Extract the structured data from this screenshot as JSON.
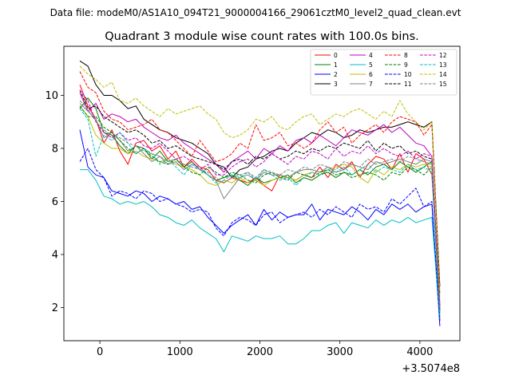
{
  "suptitle": "Data file: modeM0/AS1A10_094T21_9000004166_29061cztM0_level2_quad_clean.evt",
  "chart_data": {
    "type": "line",
    "title": "Quadrant 3 module wise count rates with 100.0s bins.",
    "xlabel": "",
    "ylabel": "",
    "offset_text": "+3.5074e8",
    "xlim": [
      -450,
      4500
    ],
    "ylim": [
      0.75,
      11.85
    ],
    "xticks": [
      0,
      1000,
      2000,
      3000,
      4000
    ],
    "xtick_labels": [
      "0",
      "1000",
      "2000",
      "3000",
      "4000"
    ],
    "yticks": [
      2,
      4,
      6,
      8,
      10
    ],
    "ytick_labels": [
      "2",
      "4",
      "6",
      "8",
      "10"
    ],
    "legend_position": "upper right",
    "x": [
      -250,
      -150,
      -50,
      50,
      150,
      250,
      350,
      450,
      550,
      650,
      750,
      850,
      950,
      1050,
      1150,
      1250,
      1350,
      1450,
      1550,
      1650,
      1750,
      1850,
      1950,
      2050,
      2150,
      2250,
      2350,
      2450,
      2550,
      2650,
      2750,
      2850,
      2950,
      3050,
      3150,
      3250,
      3350,
      3450,
      3550,
      3650,
      3750,
      3850,
      3950,
      4050,
      4150,
      4250
    ],
    "series": [
      {
        "name": "0",
        "color": "#ff0000",
        "dash": "solid",
        "values": [
          10.4,
          9.6,
          9.1,
          8.2,
          8.7,
          7.9,
          7.4,
          8.2,
          8.3,
          7.9,
          8.1,
          7.6,
          7.9,
          7.3,
          7.6,
          7.3,
          7.2,
          6.8,
          6.7,
          6.9,
          6.8,
          6.7,
          6.9,
          6.6,
          6.4,
          7.0,
          6.9,
          6.8,
          7.0,
          6.9,
          7.3,
          6.9,
          7.4,
          7.2,
          7.5,
          6.9,
          7.4,
          7.7,
          7.6,
          7.2,
          7.8,
          7.1,
          7.8,
          7.6,
          7.0,
          2.1
        ]
      },
      {
        "name": "1",
        "color": "#008000",
        "dash": "solid",
        "values": [
          9.5,
          9.9,
          9.5,
          8.6,
          8.5,
          8.1,
          7.8,
          8.1,
          8.0,
          7.6,
          7.9,
          7.5,
          7.6,
          7.3,
          7.5,
          7.2,
          7.0,
          6.8,
          6.9,
          7.0,
          6.8,
          6.6,
          6.9,
          6.7,
          6.8,
          6.9,
          7.0,
          6.7,
          6.9,
          6.8,
          7.0,
          7.1,
          6.9,
          7.1,
          7.0,
          7.2,
          7.0,
          7.3,
          7.4,
          7.2,
          7.5,
          7.3,
          7.1,
          7.3,
          7.5,
          1.8
        ]
      },
      {
        "name": "2",
        "color": "#0000ff",
        "dash": "solid",
        "values": [
          8.7,
          7.3,
          7.0,
          6.9,
          6.4,
          6.3,
          6.2,
          6.4,
          6.3,
          6.0,
          6.2,
          6.1,
          5.9,
          6.0,
          5.7,
          5.8,
          5.4,
          5.1,
          4.8,
          5.1,
          5.3,
          5.5,
          5.1,
          5.7,
          5.3,
          5.6,
          5.4,
          5.5,
          5.5,
          5.9,
          5.3,
          5.7,
          5.6,
          5.5,
          5.8,
          5.6,
          5.3,
          5.7,
          5.5,
          5.9,
          5.7,
          5.9,
          5.6,
          5.8,
          5.9,
          1.3
        ]
      },
      {
        "name": "3",
        "color": "#000000",
        "dash": "solid",
        "values": [
          11.3,
          11.1,
          10.4,
          10.0,
          10.0,
          9.8,
          9.5,
          9.6,
          9.1,
          8.9,
          8.7,
          8.6,
          8.4,
          8.3,
          8.2,
          8.0,
          7.8,
          7.4,
          7.3,
          6.9,
          7.2,
          7.3,
          7.6,
          7.7,
          7.9,
          8.0,
          7.9,
          8.2,
          8.4,
          8.6,
          8.5,
          8.7,
          8.6,
          8.4,
          8.5,
          8.7,
          8.6,
          8.7,
          8.8,
          8.8,
          8.9,
          9.0,
          8.9,
          8.8,
          9.0,
          2.8
        ]
      },
      {
        "name": "4",
        "color": "#bf00bf",
        "dash": "solid",
        "values": [
          10.1,
          9.4,
          9.7,
          9.1,
          9.3,
          9.2,
          9.0,
          9.1,
          8.8,
          8.6,
          8.4,
          8.3,
          8.5,
          8.2,
          8.0,
          7.8,
          7.6,
          7.4,
          7.1,
          7.5,
          7.7,
          7.9,
          7.6,
          8.0,
          7.8,
          8.1,
          7.9,
          8.3,
          8.4,
          8.2,
          8.5,
          8.3,
          8.1,
          8.4,
          8.7,
          8.6,
          8.5,
          8.7,
          8.9,
          8.6,
          8.8,
          8.5,
          8.2,
          8.1,
          7.7,
          2.0
        ]
      },
      {
        "name": "5",
        "color": "#00bfbf",
        "dash": "solid",
        "values": [
          7.2,
          7.2,
          6.8,
          6.2,
          6.1,
          5.9,
          6.0,
          5.9,
          6.0,
          5.8,
          5.5,
          5.4,
          5.2,
          5.1,
          5.3,
          5.0,
          4.8,
          4.6,
          4.1,
          4.7,
          4.6,
          4.5,
          4.7,
          4.6,
          4.6,
          4.7,
          4.4,
          4.4,
          4.6,
          4.9,
          4.9,
          5.1,
          5.2,
          4.8,
          5.2,
          5.1,
          5.0,
          5.3,
          5.1,
          5.3,
          5.2,
          5.4,
          5.2,
          5.3,
          5.4,
          1.5
        ]
      },
      {
        "name": "6",
        "color": "#bfbf00",
        "dash": "solid",
        "values": [
          9.6,
          9.2,
          8.5,
          8.2,
          8.0,
          8.0,
          7.8,
          7.9,
          7.7,
          7.6,
          7.5,
          7.6,
          7.4,
          7.3,
          7.2,
          7.0,
          6.7,
          6.6,
          6.8,
          6.7,
          6.9,
          6.7,
          6.8,
          6.6,
          6.8,
          6.9,
          6.9,
          6.8,
          7.0,
          7.1,
          7.0,
          7.2,
          7.3,
          7.4,
          7.3,
          6.9,
          6.7,
          7.2,
          7.0,
          7.3,
          7.2,
          7.4,
          7.3,
          7.4,
          7.3,
          2.4
        ]
      },
      {
        "name": "7",
        "color": "#808080",
        "dash": "solid",
        "values": [
          9.7,
          9.4,
          9.1,
          8.4,
          8.6,
          8.3,
          7.9,
          8.1,
          7.8,
          7.5,
          7.7,
          7.4,
          7.5,
          7.2,
          7.4,
          7.3,
          7.0,
          6.8,
          6.1,
          6.5,
          6.9,
          7.0,
          6.8,
          7.1,
          7.0,
          7.0,
          6.9,
          7.1,
          7.2,
          7.2,
          7.1,
          7.3,
          7.1,
          7.2,
          7.4,
          7.3,
          7.2,
          7.5,
          7.4,
          7.5,
          7.6,
          7.5,
          7.4,
          7.6,
          7.5,
          2.2
        ]
      },
      {
        "name": "8",
        "color": "#ff0000",
        "dash": "dashed",
        "values": [
          10.9,
          10.3,
          10.1,
          9.4,
          9.1,
          9.0,
          8.7,
          8.8,
          8.9,
          9.1,
          8.7,
          8.6,
          8.3,
          8.0,
          7.7,
          8.3,
          7.9,
          7.5,
          7.6,
          7.8,
          8.2,
          8.0,
          8.9,
          8.3,
          8.4,
          8.6,
          8.1,
          8.2,
          8.0,
          8.2,
          8.7,
          9.0,
          8.6,
          8.8,
          8.2,
          8.5,
          8.7,
          8.9,
          8.6,
          9.0,
          9.2,
          9.1,
          9.0,
          8.5,
          8.9,
          2.5
        ]
      },
      {
        "name": "9",
        "color": "#008000",
        "dash": "dashed",
        "values": [
          9.6,
          9.2,
          9.2,
          8.8,
          8.6,
          8.3,
          8.0,
          7.8,
          8.0,
          7.7,
          7.5,
          7.4,
          7.6,
          7.3,
          7.1,
          7.0,
          7.3,
          7.1,
          6.9,
          7.1,
          7.0,
          6.8,
          6.7,
          7.0,
          7.1,
          6.9,
          6.8,
          7.1,
          7.0,
          6.9,
          7.1,
          7.2,
          7.0,
          7.1,
          6.9,
          7.0,
          7.1,
          7.0,
          6.8,
          7.1,
          7.0,
          7.3,
          7.2,
          7.0,
          7.3,
          1.6
        ]
      },
      {
        "name": "10",
        "color": "#0000ff",
        "dash": "dashed",
        "values": [
          7.5,
          8.0,
          7.2,
          6.9,
          6.2,
          6.4,
          6.3,
          6.1,
          6.4,
          6.3,
          6.0,
          6.1,
          5.9,
          5.8,
          5.6,
          5.7,
          5.6,
          5.0,
          4.7,
          5.2,
          5.4,
          5.3,
          5.1,
          5.5,
          5.6,
          5.2,
          5.4,
          5.5,
          5.6,
          5.4,
          5.7,
          5.5,
          5.8,
          5.6,
          5.4,
          5.9,
          5.7,
          5.8,
          5.6,
          6.1,
          5.9,
          6.2,
          6.5,
          5.8,
          6.0,
          1.5
        ]
      },
      {
        "name": "11",
        "color": "#000000",
        "dash": "dashed",
        "values": [
          10.2,
          9.5,
          9.6,
          9.2,
          9.0,
          8.8,
          8.6,
          8.7,
          8.5,
          8.2,
          8.3,
          8.0,
          8.1,
          7.9,
          7.7,
          7.6,
          7.5,
          7.4,
          7.2,
          7.5,
          7.6,
          7.4,
          7.7,
          7.6,
          7.8,
          7.6,
          7.7,
          7.9,
          7.8,
          8.0,
          7.9,
          8.1,
          8.0,
          8.2,
          8.1,
          8.0,
          8.3,
          7.9,
          8.2,
          8.0,
          8.1,
          7.8,
          7.9,
          7.7,
          7.6,
          1.9
        ]
      },
      {
        "name": "12",
        "color": "#bf00bf",
        "dash": "dashed",
        "values": [
          10.2,
          9.8,
          9.0,
          8.6,
          8.4,
          8.6,
          8.3,
          8.4,
          8.1,
          8.0,
          8.2,
          7.9,
          7.6,
          7.7,
          7.5,
          7.2,
          7.4,
          7.0,
          7.0,
          7.3,
          7.5,
          7.6,
          7.3,
          7.5,
          7.8,
          7.6,
          7.4,
          7.7,
          7.6,
          7.9,
          7.8,
          7.6,
          8.0,
          7.7,
          7.9,
          7.8,
          8.1,
          7.8,
          8.0,
          7.8,
          7.7,
          7.9,
          7.6,
          7.8,
          7.7,
          2.0
        ]
      },
      {
        "name": "13",
        "color": "#00bfbf",
        "dash": "dashed",
        "values": [
          9.5,
          9.1,
          7.7,
          8.5,
          8.3,
          8.6,
          8.2,
          7.8,
          8.0,
          7.8,
          7.4,
          7.6,
          7.3,
          7.0,
          7.4,
          7.2,
          7.0,
          6.7,
          6.8,
          7.0,
          6.9,
          7.1,
          6.8,
          7.2,
          7.0,
          6.8,
          6.9,
          6.6,
          6.9,
          7.1,
          7.0,
          7.2,
          7.1,
          7.3,
          7.0,
          7.2,
          7.4,
          7.1,
          7.3,
          7.2,
          7.1,
          7.4,
          7.2,
          7.3,
          7.1,
          1.7
        ]
      },
      {
        "name": "14",
        "color": "#bfbf00",
        "dash": "dashed",
        "values": [
          11.1,
          10.8,
          10.6,
          10.3,
          10.5,
          9.8,
          9.7,
          9.9,
          9.6,
          9.4,
          9.2,
          9.5,
          9.3,
          9.4,
          9.5,
          9.6,
          9.3,
          9.1,
          8.6,
          8.4,
          8.5,
          8.7,
          9.1,
          9.0,
          9.2,
          8.8,
          8.7,
          9.0,
          9.2,
          9.3,
          8.9,
          9.1,
          9.3,
          9.2,
          9.4,
          9.5,
          9.3,
          9.1,
          9.4,
          9.2,
          9.8,
          9.3,
          9.0,
          8.7,
          9.0,
          2.6
        ]
      },
      {
        "name": "15",
        "color": "#808080",
        "dash": "dashed",
        "values": [
          9.8,
          9.5,
          9.0,
          8.7,
          8.5,
          8.4,
          8.2,
          8.1,
          7.9,
          7.8,
          7.7,
          7.5,
          7.6,
          7.4,
          7.3,
          7.2,
          7.1,
          6.9,
          6.7,
          6.9,
          7.0,
          7.1,
          6.9,
          7.2,
          7.1,
          7.0,
          7.2,
          7.1,
          7.3,
          7.2,
          7.4,
          7.3,
          7.2,
          7.5,
          7.4,
          7.3,
          7.6,
          7.4,
          7.5,
          7.6,
          7.5,
          7.7,
          7.6,
          7.5,
          7.4,
          1.9
        ]
      }
    ]
  }
}
